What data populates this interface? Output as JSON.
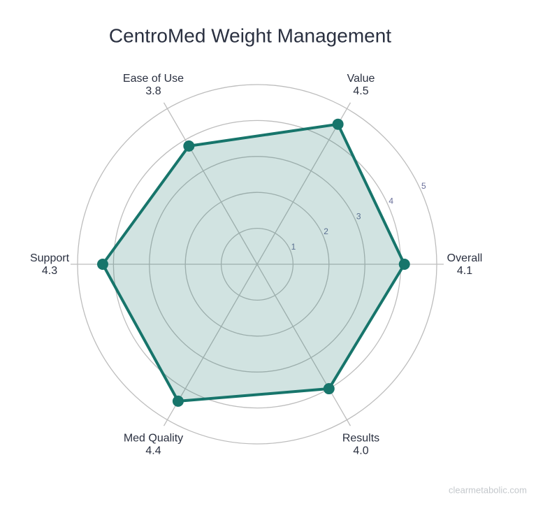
{
  "chart_data": {
    "type": "radar",
    "title": "CentroMed Weight Management",
    "categories": [
      "Overall",
      "Value",
      "Ease of Use",
      "Support",
      "Med Quality",
      "Results"
    ],
    "values": [
      4.1,
      4.5,
      3.8,
      4.3,
      4.4,
      4.0
    ],
    "value_labels": [
      "4.1",
      "4.5",
      "3.8",
      "4.3",
      "4.4",
      "4.0"
    ],
    "color": "#17756b",
    "rlim": [
      0,
      5
    ],
    "rticks": [
      1,
      2,
      3,
      4,
      5
    ],
    "grid": true,
    "watermark": "clearmetabolic.com"
  }
}
